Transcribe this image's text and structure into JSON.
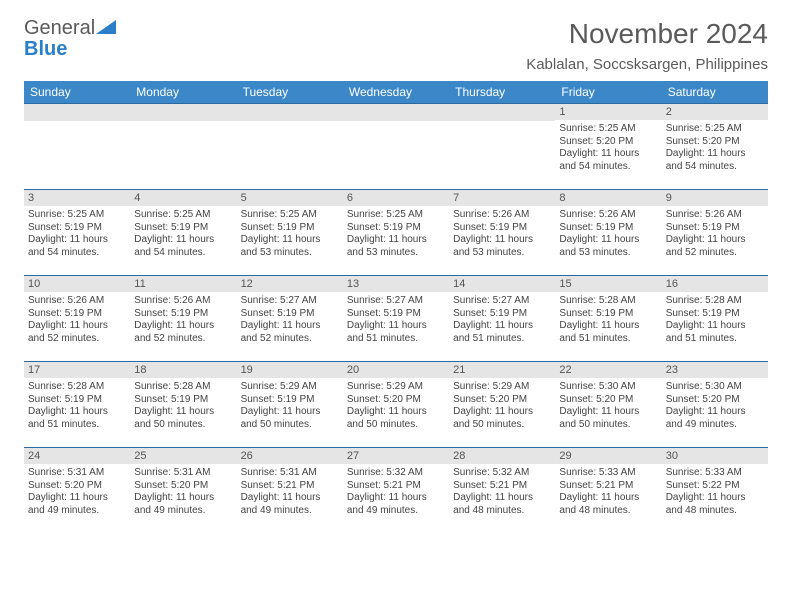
{
  "branding": {
    "name_part1": "General",
    "name_part2": "Blue",
    "colors": {
      "gray": "#5a5a5a",
      "blue": "#2a7fc9"
    }
  },
  "header": {
    "month_title": "November 2024",
    "location": "Kablalan, Soccsksargen, Philippines"
  },
  "calendar": {
    "header_bg": "#3b87c8",
    "header_fg": "#ffffff",
    "daynum_bg": "#e5e5e5",
    "border_color": "#2a6aa3",
    "day_labels": [
      "Sunday",
      "Monday",
      "Tuesday",
      "Wednesday",
      "Thursday",
      "Friday",
      "Saturday"
    ],
    "leading_blanks": 5,
    "days": [
      {
        "n": "1",
        "sunrise": "Sunrise: 5:25 AM",
        "sunset": "Sunset: 5:20 PM",
        "day1": "Daylight: 11 hours",
        "day2": "and 54 minutes."
      },
      {
        "n": "2",
        "sunrise": "Sunrise: 5:25 AM",
        "sunset": "Sunset: 5:20 PM",
        "day1": "Daylight: 11 hours",
        "day2": "and 54 minutes."
      },
      {
        "n": "3",
        "sunrise": "Sunrise: 5:25 AM",
        "sunset": "Sunset: 5:19 PM",
        "day1": "Daylight: 11 hours",
        "day2": "and 54 minutes."
      },
      {
        "n": "4",
        "sunrise": "Sunrise: 5:25 AM",
        "sunset": "Sunset: 5:19 PM",
        "day1": "Daylight: 11 hours",
        "day2": "and 54 minutes."
      },
      {
        "n": "5",
        "sunrise": "Sunrise: 5:25 AM",
        "sunset": "Sunset: 5:19 PM",
        "day1": "Daylight: 11 hours",
        "day2": "and 53 minutes."
      },
      {
        "n": "6",
        "sunrise": "Sunrise: 5:25 AM",
        "sunset": "Sunset: 5:19 PM",
        "day1": "Daylight: 11 hours",
        "day2": "and 53 minutes."
      },
      {
        "n": "7",
        "sunrise": "Sunrise: 5:26 AM",
        "sunset": "Sunset: 5:19 PM",
        "day1": "Daylight: 11 hours",
        "day2": "and 53 minutes."
      },
      {
        "n": "8",
        "sunrise": "Sunrise: 5:26 AM",
        "sunset": "Sunset: 5:19 PM",
        "day1": "Daylight: 11 hours",
        "day2": "and 53 minutes."
      },
      {
        "n": "9",
        "sunrise": "Sunrise: 5:26 AM",
        "sunset": "Sunset: 5:19 PM",
        "day1": "Daylight: 11 hours",
        "day2": "and 52 minutes."
      },
      {
        "n": "10",
        "sunrise": "Sunrise: 5:26 AM",
        "sunset": "Sunset: 5:19 PM",
        "day1": "Daylight: 11 hours",
        "day2": "and 52 minutes."
      },
      {
        "n": "11",
        "sunrise": "Sunrise: 5:26 AM",
        "sunset": "Sunset: 5:19 PM",
        "day1": "Daylight: 11 hours",
        "day2": "and 52 minutes."
      },
      {
        "n": "12",
        "sunrise": "Sunrise: 5:27 AM",
        "sunset": "Sunset: 5:19 PM",
        "day1": "Daylight: 11 hours",
        "day2": "and 52 minutes."
      },
      {
        "n": "13",
        "sunrise": "Sunrise: 5:27 AM",
        "sunset": "Sunset: 5:19 PM",
        "day1": "Daylight: 11 hours",
        "day2": "and 51 minutes."
      },
      {
        "n": "14",
        "sunrise": "Sunrise: 5:27 AM",
        "sunset": "Sunset: 5:19 PM",
        "day1": "Daylight: 11 hours",
        "day2": "and 51 minutes."
      },
      {
        "n": "15",
        "sunrise": "Sunrise: 5:28 AM",
        "sunset": "Sunset: 5:19 PM",
        "day1": "Daylight: 11 hours",
        "day2": "and 51 minutes."
      },
      {
        "n": "16",
        "sunrise": "Sunrise: 5:28 AM",
        "sunset": "Sunset: 5:19 PM",
        "day1": "Daylight: 11 hours",
        "day2": "and 51 minutes."
      },
      {
        "n": "17",
        "sunrise": "Sunrise: 5:28 AM",
        "sunset": "Sunset: 5:19 PM",
        "day1": "Daylight: 11 hours",
        "day2": "and 51 minutes."
      },
      {
        "n": "18",
        "sunrise": "Sunrise: 5:28 AM",
        "sunset": "Sunset: 5:19 PM",
        "day1": "Daylight: 11 hours",
        "day2": "and 50 minutes."
      },
      {
        "n": "19",
        "sunrise": "Sunrise: 5:29 AM",
        "sunset": "Sunset: 5:19 PM",
        "day1": "Daylight: 11 hours",
        "day2": "and 50 minutes."
      },
      {
        "n": "20",
        "sunrise": "Sunrise: 5:29 AM",
        "sunset": "Sunset: 5:20 PM",
        "day1": "Daylight: 11 hours",
        "day2": "and 50 minutes."
      },
      {
        "n": "21",
        "sunrise": "Sunrise: 5:29 AM",
        "sunset": "Sunset: 5:20 PM",
        "day1": "Daylight: 11 hours",
        "day2": "and 50 minutes."
      },
      {
        "n": "22",
        "sunrise": "Sunrise: 5:30 AM",
        "sunset": "Sunset: 5:20 PM",
        "day1": "Daylight: 11 hours",
        "day2": "and 50 minutes."
      },
      {
        "n": "23",
        "sunrise": "Sunrise: 5:30 AM",
        "sunset": "Sunset: 5:20 PM",
        "day1": "Daylight: 11 hours",
        "day2": "and 49 minutes."
      },
      {
        "n": "24",
        "sunrise": "Sunrise: 5:31 AM",
        "sunset": "Sunset: 5:20 PM",
        "day1": "Daylight: 11 hours",
        "day2": "and 49 minutes."
      },
      {
        "n": "25",
        "sunrise": "Sunrise: 5:31 AM",
        "sunset": "Sunset: 5:20 PM",
        "day1": "Daylight: 11 hours",
        "day2": "and 49 minutes."
      },
      {
        "n": "26",
        "sunrise": "Sunrise: 5:31 AM",
        "sunset": "Sunset: 5:21 PM",
        "day1": "Daylight: 11 hours",
        "day2": "and 49 minutes."
      },
      {
        "n": "27",
        "sunrise": "Sunrise: 5:32 AM",
        "sunset": "Sunset: 5:21 PM",
        "day1": "Daylight: 11 hours",
        "day2": "and 49 minutes."
      },
      {
        "n": "28",
        "sunrise": "Sunrise: 5:32 AM",
        "sunset": "Sunset: 5:21 PM",
        "day1": "Daylight: 11 hours",
        "day2": "and 48 minutes."
      },
      {
        "n": "29",
        "sunrise": "Sunrise: 5:33 AM",
        "sunset": "Sunset: 5:21 PM",
        "day1": "Daylight: 11 hours",
        "day2": "and 48 minutes."
      },
      {
        "n": "30",
        "sunrise": "Sunrise: 5:33 AM",
        "sunset": "Sunset: 5:22 PM",
        "day1": "Daylight: 11 hours",
        "day2": "and 48 minutes."
      }
    ]
  }
}
